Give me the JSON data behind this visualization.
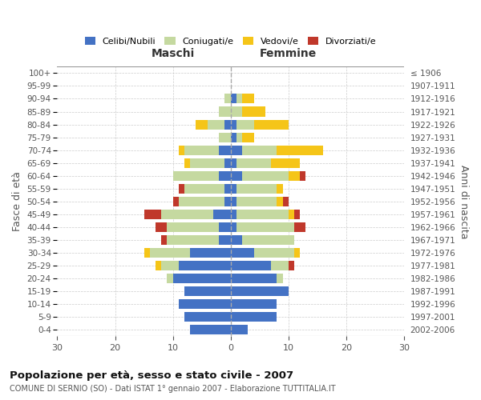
{
  "age_groups": [
    "0-4",
    "5-9",
    "10-14",
    "15-19",
    "20-24",
    "25-29",
    "30-34",
    "35-39",
    "40-44",
    "45-49",
    "50-54",
    "55-59",
    "60-64",
    "65-69",
    "70-74",
    "75-79",
    "80-84",
    "85-89",
    "90-94",
    "95-99",
    "100+"
  ],
  "birth_years": [
    "2002-2006",
    "1997-2001",
    "1992-1996",
    "1987-1991",
    "1982-1986",
    "1977-1981",
    "1972-1976",
    "1967-1971",
    "1962-1966",
    "1957-1961",
    "1952-1956",
    "1947-1951",
    "1942-1946",
    "1937-1941",
    "1932-1936",
    "1927-1931",
    "1922-1926",
    "1917-1921",
    "1912-1916",
    "1907-1911",
    "≤ 1906"
  ],
  "maschi": {
    "celibi": [
      7,
      8,
      9,
      8,
      10,
      9,
      7,
      2,
      2,
      3,
      1,
      1,
      2,
      1,
      2,
      0,
      1,
      0,
      0,
      0,
      0
    ],
    "coniugati": [
      0,
      0,
      0,
      0,
      1,
      3,
      7,
      9,
      9,
      9,
      8,
      7,
      8,
      6,
      6,
      2,
      3,
      2,
      1,
      0,
      0
    ],
    "vedovi": [
      0,
      0,
      0,
      0,
      0,
      1,
      1,
      0,
      0,
      0,
      0,
      0,
      0,
      1,
      1,
      0,
      2,
      0,
      0,
      0,
      0
    ],
    "divorziati": [
      0,
      0,
      0,
      0,
      0,
      0,
      0,
      1,
      2,
      3,
      1,
      1,
      0,
      0,
      0,
      0,
      0,
      0,
      0,
      0,
      0
    ]
  },
  "femmine": {
    "nubili": [
      3,
      8,
      8,
      10,
      8,
      7,
      4,
      2,
      1,
      1,
      1,
      1,
      2,
      1,
      2,
      1,
      1,
      0,
      1,
      0,
      0
    ],
    "coniugate": [
      0,
      0,
      0,
      0,
      1,
      3,
      7,
      9,
      10,
      9,
      7,
      7,
      8,
      6,
      6,
      1,
      3,
      2,
      1,
      0,
      0
    ],
    "vedove": [
      0,
      0,
      0,
      0,
      0,
      0,
      1,
      0,
      0,
      1,
      1,
      1,
      2,
      5,
      8,
      2,
      6,
      4,
      2,
      0,
      0
    ],
    "divorziate": [
      0,
      0,
      0,
      0,
      0,
      1,
      0,
      0,
      2,
      1,
      1,
      0,
      1,
      0,
      0,
      0,
      0,
      0,
      0,
      0,
      0
    ]
  },
  "colors": {
    "celibi_nubili": "#4472c4",
    "coniugati": "#c5d9a0",
    "vedovi": "#f5c518",
    "divorziati": "#c0382b"
  },
  "xlim": 30,
  "title": "Popolazione per età, sesso e stato civile - 2007",
  "subtitle": "COMUNE DI SERNIO (SO) - Dati ISTAT 1° gennaio 2007 - Elaborazione TUTTITALIA.IT",
  "ylabel_left": "Fasce di età",
  "ylabel_right": "Anni di nascita",
  "xlabel_maschi": "Maschi",
  "xlabel_femmine": "Femmine",
  "background_color": "#ffffff",
  "grid_color": "#cccccc"
}
